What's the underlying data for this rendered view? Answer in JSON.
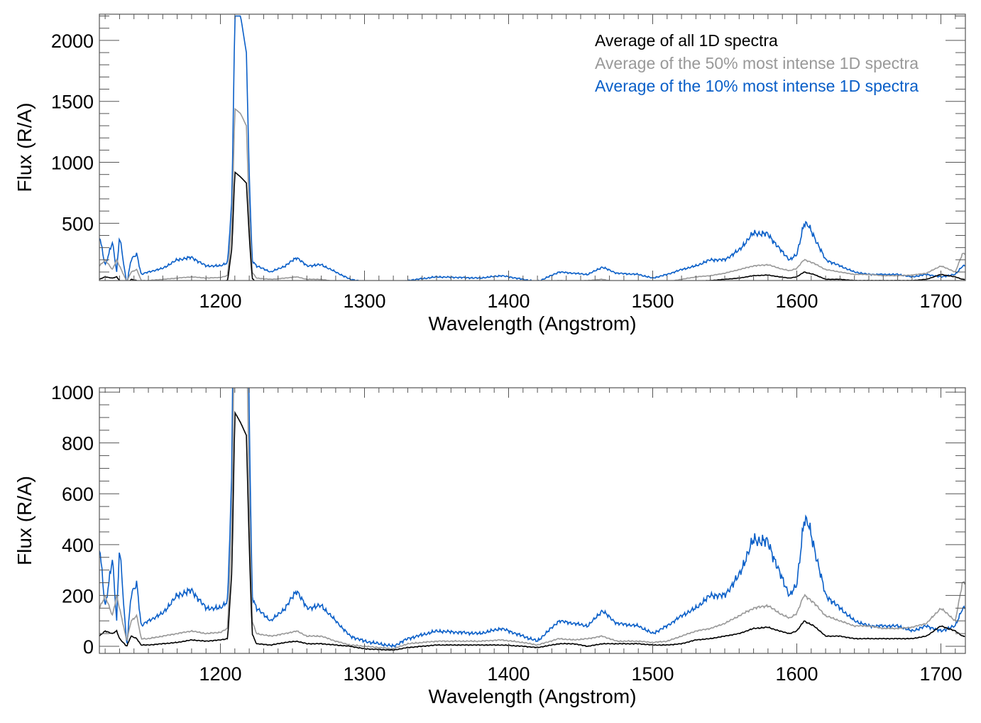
{
  "colors": {
    "all": "#000000",
    "p50": "#999999",
    "p10": "#0a5fc8",
    "axis": "#555555"
  },
  "legend": [
    {
      "label": "Average of all 1D spectra",
      "series": "all"
    },
    {
      "label": "Average of the 50% most intense 1D spectra",
      "series": "p50"
    },
    {
      "label": "Average of the 10% most intense 1D spectra",
      "series": "p10"
    }
  ],
  "chart_data": [
    {
      "type": "line",
      "xlabel": "Wavelength (Angstrom)",
      "ylabel": "Flux (R/A)",
      "xlim": [
        1116,
        1717
      ],
      "ylim": [
        30,
        2215
      ],
      "xticks": [
        1200,
        1300,
        1400,
        1500,
        1600,
        1700
      ],
      "xtick_labels": [
        "1200",
        "1300",
        "1400",
        "1500",
        "1600",
        "1700"
      ],
      "yticks": [
        500,
        1000,
        1500,
        2000
      ],
      "ytick_labels": [
        "500",
        "1000",
        "1500",
        "2000"
      ],
      "xminor": 10,
      "yminor": 100,
      "legend_position": "top-right",
      "series_ref": "spectra"
    },
    {
      "type": "line",
      "xlabel": "Wavelength (Angstrom)",
      "ylabel": "Flux (R/A)",
      "xlim": [
        1116,
        1717
      ],
      "ylim": [
        -28,
        1017
      ],
      "xticks": [
        1200,
        1300,
        1400,
        1500,
        1600,
        1700
      ],
      "xtick_labels": [
        "1200",
        "1300",
        "1400",
        "1500",
        "1600",
        "1700"
      ],
      "yticks": [
        0,
        200,
        400,
        600,
        800,
        1000
      ],
      "ytick_labels": [
        "0",
        "200",
        "400",
        "600",
        "800",
        "1000"
      ],
      "xminor": 10,
      "yminor": 50,
      "series_ref": "spectra"
    }
  ],
  "spectra": {
    "x": [
      1116,
      1120,
      1125,
      1128,
      1130,
      1135,
      1138,
      1142,
      1145,
      1150,
      1160,
      1170,
      1180,
      1190,
      1200,
      1205,
      1208,
      1210,
      1214,
      1218,
      1220,
      1222,
      1225,
      1235,
      1245,
      1253,
      1260,
      1270,
      1280,
      1290,
      1300,
      1320,
      1330,
      1350,
      1380,
      1395,
      1410,
      1420,
      1435,
      1445,
      1455,
      1465,
      1475,
      1490,
      1500,
      1510,
      1520,
      1530,
      1540,
      1550,
      1560,
      1570,
      1580,
      1588,
      1595,
      1600,
      1605,
      1608,
      1612,
      1620,
      1630,
      1640,
      1650,
      1660,
      1670,
      1680,
      1690,
      1700,
      1710,
      1715
    ],
    "series": [
      {
        "key": "all",
        "name": "Average of all 1D spectra",
        "values": [
          40,
          60,
          50,
          60,
          30,
          0,
          40,
          30,
          5,
          5,
          10,
          15,
          25,
          20,
          25,
          30,
          300,
          920,
          880,
          830,
          400,
          50,
          10,
          5,
          15,
          20,
          10,
          10,
          5,
          0,
          -10,
          -15,
          -5,
          5,
          5,
          5,
          0,
          -5,
          10,
          10,
          0,
          10,
          10,
          10,
          5,
          5,
          10,
          25,
          30,
          40,
          50,
          70,
          75,
          60,
          50,
          60,
          100,
          90,
          80,
          40,
          40,
          30,
          30,
          30,
          30,
          30,
          40,
          80,
          60,
          40
        ]
      },
      {
        "key": "p50",
        "name": "Average of the 50% most intense 1D spectra",
        "values": [
          150,
          200,
          120,
          200,
          150,
          20,
          100,
          120,
          30,
          30,
          40,
          50,
          60,
          50,
          55,
          70,
          500,
          1440,
          1400,
          1300,
          600,
          100,
          50,
          40,
          50,
          60,
          40,
          40,
          20,
          5,
          0,
          -10,
          10,
          20,
          20,
          25,
          15,
          5,
          30,
          25,
          30,
          40,
          20,
          20,
          15,
          20,
          40,
          60,
          70,
          90,
          120,
          150,
          160,
          130,
          110,
          130,
          200,
          190,
          170,
          120,
          100,
          80,
          80,
          70,
          70,
          75,
          90,
          150,
          100,
          250
        ]
      },
      {
        "key": "p10",
        "name": "Average of the 10% most intense 1D spectra",
        "values": [
          400,
          150,
          350,
          100,
          400,
          0,
          200,
          250,
          80,
          100,
          130,
          200,
          220,
          150,
          150,
          180,
          700,
          2200,
          2200,
          1900,
          900,
          200,
          150,
          100,
          150,
          220,
          150,
          160,
          100,
          40,
          20,
          0,
          30,
          60,
          50,
          70,
          40,
          20,
          100,
          90,
          80,
          140,
          90,
          80,
          50,
          80,
          120,
          150,
          200,
          200,
          280,
          420,
          410,
          290,
          200,
          240,
          500,
          480,
          390,
          200,
          150,
          100,
          80,
          80,
          80,
          60,
          80,
          60,
          80,
          150
        ]
      }
    ]
  }
}
